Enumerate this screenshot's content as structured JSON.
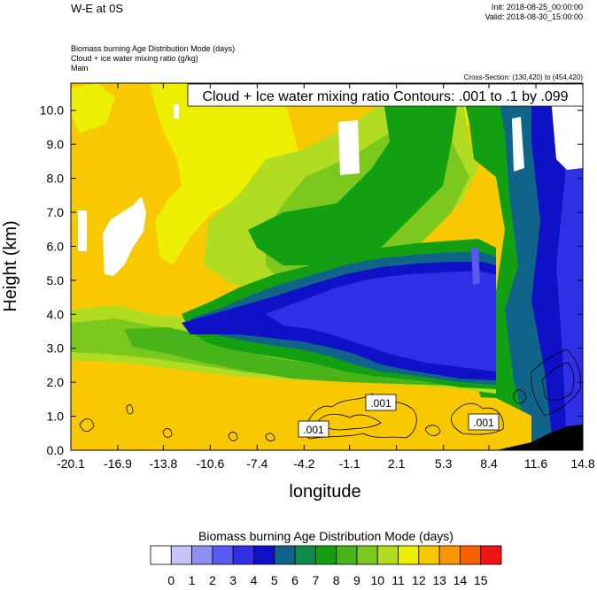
{
  "header": {
    "title": "W-E at 0S",
    "init": "Init: 2018-08-25_00:00:00",
    "valid": "Valid: 2018-08-30_15:00:00",
    "field1": "Biomass burning Age Distribution Mode   (days)",
    "field2": "Cloud + ice water mixing ratio   (g/kg)",
    "field3": "Main",
    "cross_section": "Cross-Section: (130,420) to (454,420)"
  },
  "chart_data": {
    "type": "heatmap",
    "title": "Cloud + Ice water mixing ratio Contours: .001 to .1 by .099",
    "xlabel": "longitude",
    "ylabel": "Height (km)",
    "xlim": [
      -20.1,
      14.8
    ],
    "ylim": [
      0,
      10.8
    ],
    "xticks": [
      "-20.1",
      "-16.9",
      "-13.8",
      "-10.6",
      "-7.4",
      "-4.2",
      "-1.1",
      "2.1",
      "5.3",
      "8.4",
      "11.6",
      "14.8"
    ],
    "yticks": [
      "0.0",
      "1.0",
      "2.0",
      "3.0",
      "4.0",
      "5.0",
      "6.0",
      "7.0",
      "8.0",
      "9.0",
      "10.0"
    ],
    "contour_labels": [
      ".001",
      ".001",
      ".001"
    ],
    "colorbar": {
      "title": "Biomass burning Age Distribution Mode  (days)",
      "labels": [
        "0",
        "1",
        "2",
        "3",
        "4",
        "5",
        "6",
        "7",
        "8",
        "9",
        "10",
        "11",
        "12",
        "13",
        "14",
        "15"
      ],
      "colors": [
        "#ffffff",
        "#c4c4f6",
        "#8f8ff2",
        "#5a5af0",
        "#2f2fe6",
        "#1010c6",
        "#10648a",
        "#0f8a4a",
        "#12a012",
        "#48b41a",
        "#7cc81e",
        "#b2dc22",
        "#ecf000",
        "#f8c800",
        "#f89600",
        "#f86000",
        "#f01414"
      ]
    }
  }
}
